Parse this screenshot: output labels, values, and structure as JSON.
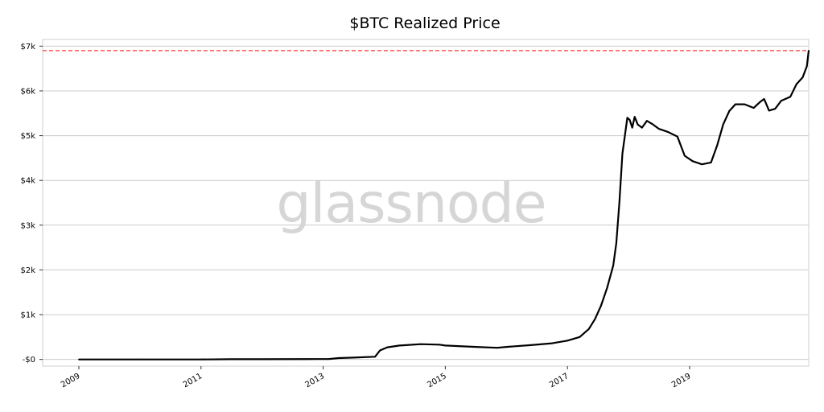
{
  "chart_data": {
    "type": "line",
    "title": "$BTC Realized Price",
    "watermark": "glassnode",
    "xlabel": "",
    "ylabel": "",
    "x_range": [
      2009.0,
      2020.95
    ],
    "ylim": [
      -150,
      7150
    ],
    "grid": "horizontal",
    "x_ticks": [
      {
        "value": 2009,
        "label": "2009"
      },
      {
        "value": 2011,
        "label": "2011"
      },
      {
        "value": 2013,
        "label": "2013"
      },
      {
        "value": 2015,
        "label": "2015"
      },
      {
        "value": 2017,
        "label": "2017"
      },
      {
        "value": 2019,
        "label": "2019"
      }
    ],
    "y_ticks": [
      {
        "value": 0,
        "label": "-$0"
      },
      {
        "value": 1000,
        "label": "$1k"
      },
      {
        "value": 2000,
        "label": "$2k"
      },
      {
        "value": 3000,
        "label": "$3k"
      },
      {
        "value": 4000,
        "label": "$4k"
      },
      {
        "value": 5000,
        "label": "$5k"
      },
      {
        "value": 6000,
        "label": "$6k"
      },
      {
        "value": 7000,
        "label": "$7k"
      }
    ],
    "reference_line": {
      "value": 6900,
      "color": "#ff3333",
      "style": "dashed"
    },
    "series": [
      {
        "color": "#000000",
        "points": [
          [
            2009.0,
            0
          ],
          [
            2010.0,
            0
          ],
          [
            2011.0,
            0
          ],
          [
            2011.5,
            5
          ],
          [
            2012.0,
            5
          ],
          [
            2012.9,
            8
          ],
          [
            2013.1,
            10
          ],
          [
            2013.25,
            30
          ],
          [
            2013.5,
            40
          ],
          [
            2013.85,
            60
          ],
          [
            2013.93,
            200
          ],
          [
            2014.05,
            270
          ],
          [
            2014.25,
            310
          ],
          [
            2014.6,
            340
          ],
          [
            2014.9,
            330
          ],
          [
            2015.0,
            310
          ],
          [
            2015.5,
            280
          ],
          [
            2015.85,
            260
          ],
          [
            2016.0,
            280
          ],
          [
            2016.4,
            320
          ],
          [
            2016.75,
            360
          ],
          [
            2017.0,
            420
          ],
          [
            2017.2,
            500
          ],
          [
            2017.35,
            680
          ],
          [
            2017.45,
            900
          ],
          [
            2017.55,
            1200
          ],
          [
            2017.65,
            1600
          ],
          [
            2017.75,
            2100
          ],
          [
            2017.8,
            2600
          ],
          [
            2017.85,
            3500
          ],
          [
            2017.9,
            4600
          ],
          [
            2017.98,
            5400
          ],
          [
            2018.02,
            5350
          ],
          [
            2018.06,
            5180
          ],
          [
            2018.1,
            5420
          ],
          [
            2018.15,
            5250
          ],
          [
            2018.22,
            5180
          ],
          [
            2018.3,
            5330
          ],
          [
            2018.4,
            5250
          ],
          [
            2018.5,
            5150
          ],
          [
            2018.65,
            5080
          ],
          [
            2018.8,
            4980
          ],
          [
            2018.92,
            4550
          ],
          [
            2019.05,
            4430
          ],
          [
            2019.2,
            4360
          ],
          [
            2019.35,
            4400
          ],
          [
            2019.45,
            4780
          ],
          [
            2019.55,
            5250
          ],
          [
            2019.65,
            5550
          ],
          [
            2019.75,
            5700
          ],
          [
            2019.9,
            5700
          ],
          [
            2020.05,
            5620
          ],
          [
            2020.15,
            5750
          ],
          [
            2020.22,
            5820
          ],
          [
            2020.3,
            5560
          ],
          [
            2020.4,
            5600
          ],
          [
            2020.5,
            5780
          ],
          [
            2020.65,
            5870
          ],
          [
            2020.75,
            6150
          ],
          [
            2020.85,
            6300
          ],
          [
            2020.92,
            6550
          ],
          [
            2020.95,
            6900
          ]
        ]
      }
    ]
  }
}
